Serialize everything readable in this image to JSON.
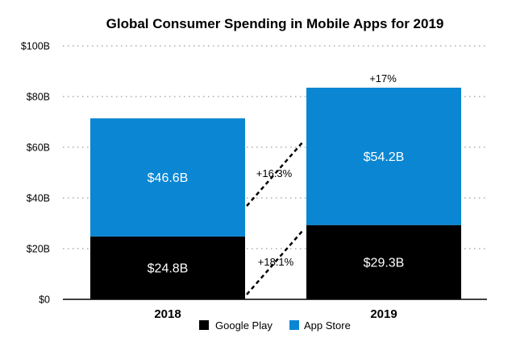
{
  "chart_data": {
    "type": "bar",
    "stacked": true,
    "title": "Global Consumer Spending in Mobile Apps for 2019",
    "xlabel": "",
    "ylabel": "",
    "categories": [
      "2018",
      "2019"
    ],
    "series": [
      {
        "name": "Google Play",
        "color": "#000000",
        "values": [
          24.8,
          29.3
        ],
        "labels": [
          "$24.8B",
          "$29.3B"
        ]
      },
      {
        "name": "App Store",
        "color": "#0a86d3",
        "values": [
          46.6,
          54.2
        ],
        "labels": [
          "$46.6B",
          "$54.2B"
        ]
      }
    ],
    "ylim": [
      0,
      100
    ],
    "yticks": [
      0,
      20,
      40,
      60,
      80,
      100
    ],
    "ytick_labels": [
      "$0",
      "$20B",
      "$40B",
      "$60B",
      "$80B",
      "$100B"
    ],
    "grid": true,
    "legend": "bottom-center",
    "annotations": {
      "total_growth": "+17%",
      "app_store_growth": "+16.3%",
      "google_play_growth": "+18.1%"
    }
  }
}
